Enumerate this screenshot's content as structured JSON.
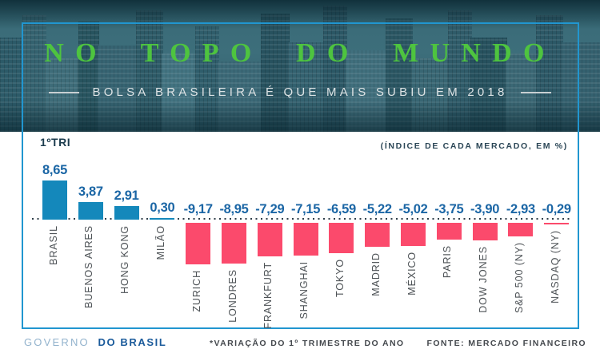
{
  "colors": {
    "title_green": "#4ec43f",
    "frame_blue": "#2196d0",
    "positive_bar": "#1488bb",
    "negative_bar": "#fb4a6c",
    "value_text": "#1b66a5",
    "baseline_dots": "#2f3e49"
  },
  "header": {
    "title": "NO TOPO DO MUNDO",
    "subtitle": "BOLSA BRASILEIRA É QUE MAIS SUBIU EM 2018"
  },
  "chart": {
    "period_label": "1ºTRI",
    "unit_note": "(ÍNDICE DE CADA MERCADO, EM %)"
  },
  "chart_data": {
    "type": "bar",
    "title": "NO TOPO DO MUNDO",
    "subtitle": "BOLSA BRASILEIRA É QUE MAIS SUBIU EM 2018",
    "period": "1ºTRI",
    "unit": "%",
    "value_note": "(ÍNDICE DE CADA MERCADO, EM %)",
    "categories": [
      "BRASIL",
      "BUENOS AIRES",
      "HONG KONG",
      "MILÃO",
      "ZURICH",
      "LONDRES",
      "FRANKFURT",
      "SHANGHAI",
      "TOKYO",
      "MADRID",
      "MÉXICO",
      "PARIS",
      "DOW JONES",
      "S&P 500 (NY)",
      "NASDAQ (NY)"
    ],
    "values": [
      8.65,
      3.87,
      2.91,
      0.3,
      -9.17,
      -8.95,
      -7.29,
      -7.15,
      -6.59,
      -5.22,
      -5.02,
      -3.75,
      -3.9,
      -2.93,
      -0.29
    ],
    "decimal_separator": ",",
    "ylim": [
      -10,
      10
    ],
    "grid": false,
    "legend": false
  },
  "footer": {
    "brand_light": "GOVERNO",
    "brand_bold": "DO BRASIL",
    "footnote": "*VARIAÇÃO DO 1º TRIMESTRE DO ANO",
    "source": "FONTE: MERCADO FINANCEIRO"
  }
}
